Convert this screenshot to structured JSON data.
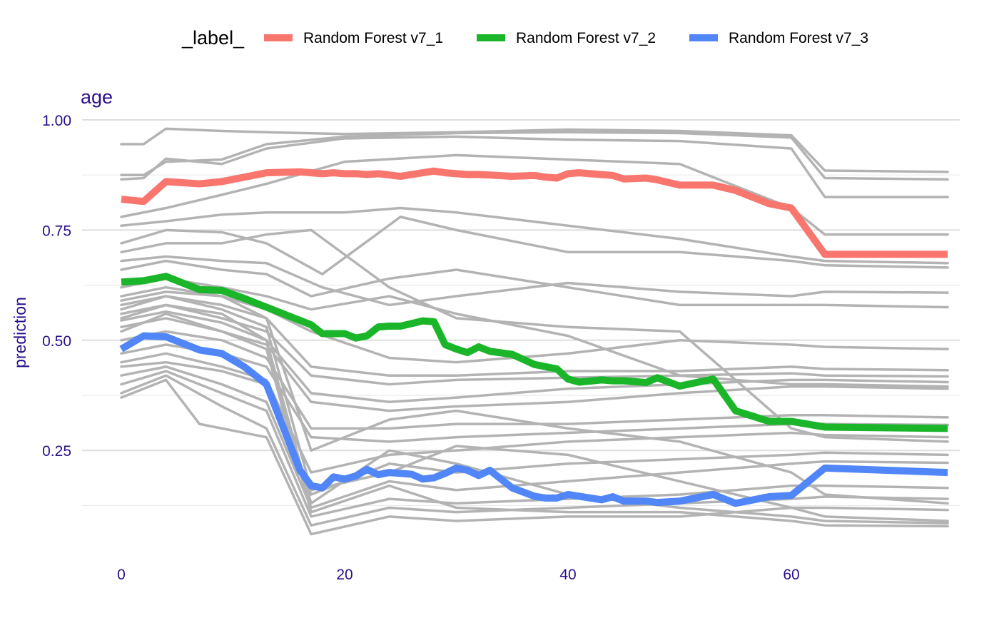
{
  "chart_data": {
    "type": "line",
    "title": "age",
    "xlabel": "",
    "ylabel": "prediction",
    "xlim": [
      0,
      74
    ],
    "ylim": [
      0.05,
      1.0
    ],
    "x_ticks": [
      0,
      20,
      40,
      60
    ],
    "y_ticks": [
      0.25,
      0.5,
      0.75,
      1.0
    ],
    "y_tick_labels": [
      "0.25",
      "0.50",
      "0.75",
      "1.00"
    ],
    "grid": true,
    "legend": {
      "title": "_label_",
      "position": "top"
    },
    "x": [
      0,
      2,
      4,
      7,
      9,
      11,
      13,
      16,
      17,
      18,
      19,
      20,
      21,
      22,
      23,
      24,
      25,
      26,
      27,
      28,
      29,
      30,
      31,
      32,
      33,
      35,
      37,
      38,
      39,
      40,
      41,
      43,
      44,
      45,
      47,
      48,
      50,
      53,
      55,
      58,
      60,
      63,
      74
    ],
    "series": [
      {
        "name": "Random Forest v7_1",
        "color": "#f8766d",
        "values": [
          0.82,
          0.815,
          0.86,
          0.855,
          0.86,
          0.87,
          0.88,
          0.882,
          0.88,
          0.878,
          0.88,
          0.878,
          0.878,
          0.876,
          0.878,
          0.875,
          0.872,
          0.876,
          0.88,
          0.884,
          0.88,
          0.878,
          0.876,
          0.876,
          0.875,
          0.872,
          0.874,
          0.87,
          0.868,
          0.878,
          0.88,
          0.876,
          0.874,
          0.866,
          0.868,
          0.864,
          0.852,
          0.852,
          0.84,
          0.81,
          0.8,
          0.695,
          0.695
        ]
      },
      {
        "name": "Random Forest v7_2",
        "color": "#1bb52a",
        "values": [
          0.632,
          0.635,
          0.645,
          0.615,
          0.613,
          0.595,
          0.575,
          0.545,
          0.535,
          0.515,
          0.515,
          0.515,
          0.505,
          0.51,
          0.53,
          0.532,
          0.532,
          0.538,
          0.544,
          0.542,
          0.49,
          0.48,
          0.472,
          0.485,
          0.475,
          0.468,
          0.445,
          0.44,
          0.435,
          0.412,
          0.405,
          0.41,
          0.408,
          0.408,
          0.404,
          0.415,
          0.396,
          0.412,
          0.34,
          0.316,
          0.316,
          0.303,
          0.3
        ]
      },
      {
        "name": "Random Forest v7_3",
        "color": "#5086f7",
        "values": [
          0.48,
          0.51,
          0.508,
          0.478,
          0.47,
          0.44,
          0.4,
          0.205,
          0.17,
          0.165,
          0.19,
          0.185,
          0.192,
          0.207,
          0.195,
          0.2,
          0.198,
          0.196,
          0.185,
          0.188,
          0.198,
          0.21,
          0.205,
          0.193,
          0.205,
          0.165,
          0.146,
          0.142,
          0.142,
          0.15,
          0.146,
          0.138,
          0.145,
          0.135,
          0.135,
          0.132,
          0.135,
          0.15,
          0.13,
          0.145,
          0.148,
          0.21,
          0.2
        ]
      }
    ],
    "background_profiles": {
      "color": "#b3b3b3",
      "note_free": true,
      "lines": [
        {
          "x": [
            0,
            2,
            4,
            9,
            13,
            20,
            30,
            40,
            50,
            60,
            63,
            74
          ],
          "values": [
            0.945,
            0.945,
            0.98,
            0.975,
            0.972,
            0.968,
            0.972,
            0.978,
            0.975,
            0.965,
            0.885,
            0.882
          ]
        },
        {
          "x": [
            0,
            2,
            4,
            9,
            13,
            20,
            30,
            40,
            50,
            60,
            63,
            74
          ],
          "values": [
            0.875,
            0.875,
            0.905,
            0.91,
            0.945,
            0.962,
            0.97,
            0.972,
            0.97,
            0.96,
            0.868,
            0.865
          ]
        },
        {
          "x": [
            0,
            2,
            4,
            9,
            13,
            20,
            30,
            40,
            50,
            60,
            63,
            74
          ],
          "values": [
            0.865,
            0.868,
            0.912,
            0.9,
            0.935,
            0.958,
            0.962,
            0.955,
            0.952,
            0.935,
            0.825,
            0.825
          ]
        },
        {
          "x": [
            0,
            4,
            9,
            13,
            20,
            30,
            40,
            50,
            60,
            63,
            74
          ],
          "values": [
            0.78,
            0.8,
            0.83,
            0.855,
            0.905,
            0.92,
            0.91,
            0.9,
            0.8,
            0.74,
            0.74
          ]
        },
        {
          "x": [
            0,
            4,
            9,
            13,
            20,
            25,
            30,
            40,
            50,
            60,
            63,
            74
          ],
          "values": [
            0.76,
            0.77,
            0.785,
            0.79,
            0.79,
            0.8,
            0.79,
            0.76,
            0.73,
            0.69,
            0.68,
            0.675
          ]
        },
        {
          "x": [
            0,
            4,
            9,
            13,
            18,
            25,
            30,
            40,
            50,
            60,
            63,
            74
          ],
          "values": [
            0.72,
            0.75,
            0.745,
            0.72,
            0.65,
            0.78,
            0.75,
            0.7,
            0.7,
            0.68,
            0.67,
            0.665
          ]
        },
        {
          "x": [
            0,
            4,
            9,
            13,
            18,
            24,
            30,
            40,
            50,
            60,
            63,
            74
          ],
          "values": [
            0.68,
            0.69,
            0.68,
            0.675,
            0.62,
            0.58,
            0.6,
            0.63,
            0.61,
            0.6,
            0.61,
            0.608
          ]
        },
        {
          "x": [
            0,
            4,
            9,
            13,
            17,
            24,
            30,
            40,
            50,
            60,
            63,
            74
          ],
          "values": [
            0.66,
            0.68,
            0.66,
            0.65,
            0.6,
            0.64,
            0.66,
            0.62,
            0.58,
            0.58,
            0.58,
            0.575
          ]
        },
        {
          "x": [
            0,
            4,
            9,
            13,
            17,
            24,
            30,
            40,
            50,
            60,
            63,
            74
          ],
          "values": [
            0.6,
            0.62,
            0.6,
            0.57,
            0.52,
            0.46,
            0.45,
            0.47,
            0.5,
            0.49,
            0.485,
            0.48
          ]
        },
        {
          "x": [
            0,
            4,
            9,
            13,
            17,
            24,
            30,
            40,
            50,
            60,
            63,
            74
          ],
          "values": [
            0.58,
            0.6,
            0.58,
            0.55,
            0.44,
            0.42,
            0.42,
            0.43,
            0.43,
            0.44,
            0.435,
            0.432
          ]
        },
        {
          "x": [
            0,
            4,
            9,
            13,
            17,
            24,
            30,
            40,
            50,
            60,
            63,
            74
          ],
          "values": [
            0.56,
            0.58,
            0.55,
            0.52,
            0.42,
            0.4,
            0.41,
            0.415,
            0.42,
            0.425,
            0.42,
            0.418
          ]
        },
        {
          "x": [
            0,
            4,
            9,
            13,
            17,
            24,
            30,
            40,
            50,
            60,
            63,
            74
          ],
          "values": [
            0.545,
            0.565,
            0.54,
            0.5,
            0.38,
            0.36,
            0.37,
            0.39,
            0.4,
            0.41,
            0.41,
            0.405
          ]
        },
        {
          "x": [
            0,
            4,
            9,
            13,
            17,
            24,
            30,
            40,
            50,
            60,
            63,
            74
          ],
          "values": [
            0.53,
            0.55,
            0.52,
            0.49,
            0.36,
            0.34,
            0.35,
            0.36,
            0.38,
            0.395,
            0.395,
            0.39
          ]
        },
        {
          "x": [
            0,
            4,
            9,
            13,
            17,
            24,
            30,
            40,
            50,
            60,
            63,
            74
          ],
          "values": [
            0.5,
            0.52,
            0.5,
            0.46,
            0.3,
            0.3,
            0.31,
            0.31,
            0.32,
            0.33,
            0.33,
            0.325
          ]
        },
        {
          "x": [
            0,
            4,
            9,
            13,
            17,
            24,
            30,
            40,
            50,
            60,
            63,
            74
          ],
          "values": [
            0.47,
            0.49,
            0.47,
            0.44,
            0.28,
            0.27,
            0.28,
            0.29,
            0.3,
            0.31,
            0.31,
            0.308
          ]
        },
        {
          "x": [
            0,
            4,
            9,
            13,
            17,
            24,
            30,
            40,
            50,
            60,
            63,
            74
          ],
          "values": [
            0.45,
            0.47,
            0.44,
            0.41,
            0.2,
            0.24,
            0.25,
            0.27,
            0.28,
            0.29,
            0.285,
            0.28
          ]
        },
        {
          "x": [
            0,
            4,
            9,
            13,
            17,
            24,
            30,
            40,
            50,
            60,
            63,
            74
          ],
          "values": [
            0.44,
            0.45,
            0.43,
            0.4,
            0.15,
            0.22,
            0.2,
            0.22,
            0.23,
            0.24,
            0.245,
            0.24
          ]
        },
        {
          "x": [
            0,
            4,
            9,
            13,
            17,
            24,
            30,
            40,
            50,
            60,
            63,
            74
          ],
          "values": [
            0.42,
            0.44,
            0.4,
            0.36,
            0.12,
            0.18,
            0.16,
            0.18,
            0.2,
            0.22,
            0.225,
            0.222
          ]
        },
        {
          "x": [
            0,
            4,
            9,
            13,
            17,
            24,
            30,
            40,
            50,
            60,
            63,
            74
          ],
          "values": [
            0.4,
            0.43,
            0.38,
            0.34,
            0.1,
            0.14,
            0.13,
            0.14,
            0.15,
            0.17,
            0.17,
            0.165
          ]
        },
        {
          "x": [
            0,
            4,
            9,
            13,
            17,
            24,
            30,
            40,
            50,
            60,
            63,
            74
          ],
          "values": [
            0.38,
            0.42,
            0.35,
            0.3,
            0.08,
            0.12,
            0.11,
            0.12,
            0.13,
            0.14,
            0.145,
            0.14
          ]
        },
        {
          "x": [
            0,
            4,
            7,
            13,
            17,
            24,
            30,
            40,
            50,
            60,
            63,
            74
          ],
          "values": [
            0.37,
            0.41,
            0.31,
            0.28,
            0.06,
            0.1,
            0.09,
            0.1,
            0.1,
            0.12,
            0.12,
            0.115
          ]
        },
        {
          "x": [
            0,
            4,
            9,
            13,
            17,
            24,
            30,
            40,
            50,
            60,
            63,
            74
          ],
          "values": [
            0.62,
            0.64,
            0.62,
            0.6,
            0.57,
            0.6,
            0.56,
            0.51,
            0.42,
            0.4,
            0.4,
            0.395
          ]
        },
        {
          "x": [
            0,
            4,
            9,
            13,
            17,
            24,
            30,
            40,
            50,
            60,
            63,
            74
          ],
          "values": [
            0.7,
            0.72,
            0.72,
            0.74,
            0.75,
            0.62,
            0.55,
            0.53,
            0.52,
            0.3,
            0.28,
            0.27
          ]
        },
        {
          "x": [
            0,
            4,
            9,
            13,
            17,
            24,
            30,
            40,
            50,
            60,
            63,
            74
          ],
          "values": [
            0.59,
            0.61,
            0.6,
            0.55,
            0.25,
            0.32,
            0.34,
            0.3,
            0.27,
            0.2,
            0.15,
            0.13
          ]
        },
        {
          "x": [
            0,
            4,
            9,
            13,
            17,
            24,
            30,
            40,
            50,
            60,
            63,
            74
          ],
          "values": [
            0.57,
            0.6,
            0.57,
            0.53,
            0.16,
            0.2,
            0.26,
            0.24,
            0.18,
            0.12,
            0.1,
            0.09
          ]
        },
        {
          "x": [
            0,
            4,
            9,
            13,
            17,
            24,
            30,
            40,
            50,
            60,
            63,
            74
          ],
          "values": [
            0.55,
            0.58,
            0.56,
            0.5,
            0.13,
            0.25,
            0.22,
            0.15,
            0.12,
            0.1,
            0.09,
            0.085
          ]
        },
        {
          "x": [
            0,
            4,
            9,
            13,
            17,
            24,
            30,
            40,
            50,
            60,
            63,
            74
          ],
          "values": [
            0.52,
            0.56,
            0.52,
            0.48,
            0.11,
            0.17,
            0.12,
            0.11,
            0.11,
            0.09,
            0.08,
            0.078
          ]
        }
      ]
    }
  }
}
